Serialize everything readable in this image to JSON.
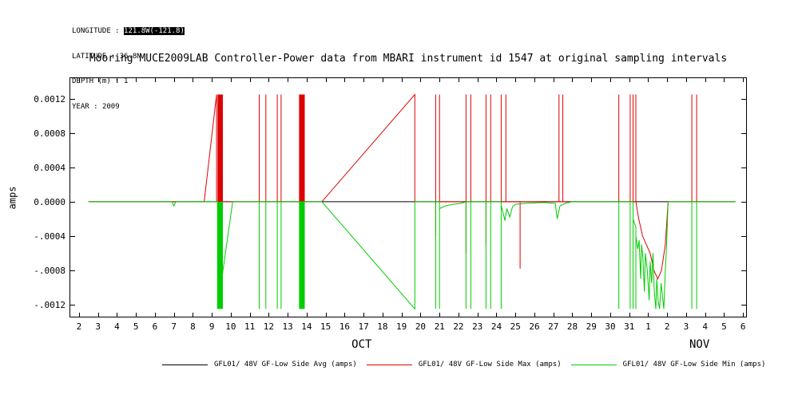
{
  "metadata": {
    "lines": [
      {
        "label": "LONGITUDE : ",
        "value": "121.8W(-121.8)",
        "highlighted": true
      },
      {
        "label": "LATITUDE : ",
        "value": "36.8N",
        "highlighted": false
      },
      {
        "label": "DEPTH (m) : ",
        "value": "1",
        "highlighted": false
      },
      {
        "label": "YEAR : ",
        "value": "2009",
        "highlighted": false
      }
    ]
  },
  "title": "Mooring MUCE2009LAB Controller-Power data from MBARI instrument id 1547 at original sampling intervals",
  "chart_data": {
    "type": "line",
    "title": "Mooring MUCE2009LAB Controller-Power data from MBARI instrument id 1547 at original sampling intervals",
    "xlabel": "",
    "ylabel": "amps",
    "xlim": [
      1.5,
      37.2
    ],
    "ylim": [
      -0.00135,
      0.00145
    ],
    "grid": false,
    "legend_position": "bottom",
    "x_units": "day of month (OCT 2 - NOV 6, 2009)",
    "yticks": [
      {
        "value": 0.0012,
        "label": "0.0012"
      },
      {
        "value": 0.0008,
        "label": "0.0008"
      },
      {
        "value": 0.0004,
        "label": "0.0004"
      },
      {
        "value": 0.0,
        "label": "0.0000"
      },
      {
        "value": -0.0004,
        "label": "-.0004"
      },
      {
        "value": -0.0008,
        "label": "-.0008"
      },
      {
        "value": -0.0012,
        "label": "-.0012"
      }
    ],
    "xticks": {
      "start_day": 2,
      "labels": [
        "2",
        "3",
        "4",
        "5",
        "6",
        "7",
        "8",
        "9",
        "10",
        "11",
        "12",
        "13",
        "14",
        "15",
        "16",
        "17",
        "18",
        "19",
        "20",
        "21",
        "22",
        "23",
        "24",
        "25",
        "26",
        "27",
        "28",
        "29",
        "30",
        "31",
        "1",
        "2",
        "3",
        "4",
        "5",
        "6"
      ]
    },
    "month_labels": [
      {
        "day": 16.9,
        "label": "OCT"
      },
      {
        "day": 34.7,
        "label": "NOV"
      }
    ],
    "series": [
      {
        "name": "GFL01/ 48V GF-Low Side Avg (amps)",
        "color": "#000000",
        "bands": [],
        "segments": [
          [
            [
              2.5,
              0
            ],
            [
              36.6,
              0
            ]
          ]
        ]
      },
      {
        "name": "GFL01/ 48V GF-Low Side Max (amps)",
        "color": "#dd0000",
        "bands": [
          {
            "x1": 9.3,
            "x2": 9.58,
            "y1": 0,
            "y2": 0.00125
          },
          {
            "x1": 13.6,
            "x2": 13.9,
            "y1": 0,
            "y2": 0.00125
          }
        ],
        "segments": [
          [
            [
              2.5,
              0
            ],
            [
              8.6,
              0
            ],
            [
              9.25,
              0.00125
            ],
            [
              9.25,
              0
            ],
            [
              11.5,
              0
            ],
            [
              11.5,
              0.00125
            ],
            [
              11.5,
              0
            ],
            [
              11.85,
              0
            ],
            [
              11.85,
              0.00125
            ],
            [
              11.85,
              0
            ],
            [
              12.45,
              0
            ],
            [
              12.45,
              0.00125
            ],
            [
              12.45,
              0
            ],
            [
              12.65,
              0
            ],
            [
              12.65,
              0.00125
            ],
            [
              12.65,
              0
            ],
            [
              14.8,
              0
            ],
            [
              19.7,
              0.00125
            ],
            [
              19.7,
              0
            ],
            [
              20.8,
              0
            ],
            [
              20.8,
              0.00125
            ],
            [
              20.8,
              -0.0004
            ],
            [
              20.8,
              0
            ],
            [
              21.0,
              0
            ],
            [
              21.0,
              0.00125
            ],
            [
              21.0,
              0
            ],
            [
              22.4,
              0
            ],
            [
              22.4,
              0.00125
            ],
            [
              22.4,
              -0.0006
            ],
            [
              22.4,
              0
            ],
            [
              22.65,
              0
            ],
            [
              22.65,
              0.00125
            ],
            [
              22.65,
              0
            ],
            [
              23.45,
              0
            ],
            [
              23.45,
              0.00125
            ],
            [
              23.45,
              -0.0005
            ],
            [
              23.45,
              0
            ],
            [
              23.7,
              0
            ],
            [
              23.7,
              0.00125
            ],
            [
              23.7,
              0
            ],
            [
              24.25,
              0
            ],
            [
              24.25,
              0.00125
            ],
            [
              24.25,
              0
            ],
            [
              24.5,
              0
            ],
            [
              24.5,
              0.00125
            ],
            [
              24.5,
              0
            ],
            [
              25.25,
              0
            ],
            [
              25.25,
              -0.00078
            ],
            [
              25.25,
              0
            ],
            [
              27.3,
              0
            ],
            [
              27.3,
              0.00125
            ],
            [
              27.3,
              0
            ],
            [
              27.5,
              0
            ],
            [
              27.5,
              0.00125
            ],
            [
              27.5,
              0
            ],
            [
              30.45,
              0
            ],
            [
              30.45,
              0.00125
            ],
            [
              30.45,
              0
            ],
            [
              31.05,
              0
            ],
            [
              31.05,
              0.00125
            ],
            [
              31.05,
              0
            ],
            [
              31.2,
              0
            ],
            [
              31.2,
              0.00125
            ],
            [
              31.2,
              -0.0005
            ],
            [
              31.2,
              0
            ],
            [
              31.35,
              0
            ],
            [
              31.35,
              0.00125
            ],
            [
              31.35,
              0
            ],
            [
              31.5,
              -0.0002
            ],
            [
              31.7,
              -0.0004
            ],
            [
              31.9,
              -0.0005
            ],
            [
              32.1,
              -0.0006
            ],
            [
              32.3,
              -0.0008
            ],
            [
              32.5,
              -0.0009
            ],
            [
              32.7,
              -0.0008
            ],
            [
              32.9,
              -0.0005
            ],
            [
              33.05,
              0
            ],
            [
              34.3,
              0
            ],
            [
              34.3,
              0.00125
            ],
            [
              34.3,
              0
            ],
            [
              34.55,
              0
            ],
            [
              34.55,
              0.00125
            ],
            [
              34.55,
              0
            ],
            [
              36.6,
              0
            ]
          ]
        ]
      },
      {
        "name": "GFL01/ 48V GF-Low Side Min (amps)",
        "color": "#00cc00",
        "bands": [
          {
            "x1": 9.3,
            "x2": 9.58,
            "y1": -0.00125,
            "y2": 0
          },
          {
            "x1": 13.6,
            "x2": 13.9,
            "y1": -0.00125,
            "y2": 0
          }
        ],
        "segments": [
          [
            [
              2.5,
              0
            ],
            [
              6.9,
              0
            ],
            [
              7.0,
              -5e-05
            ],
            [
              7.1,
              0
            ],
            [
              9.3,
              0
            ],
            [
              9.3,
              -0.00125
            ],
            [
              10.1,
              0
            ],
            [
              11.5,
              0
            ],
            [
              11.5,
              -0.00125
            ],
            [
              11.5,
              0
            ],
            [
              11.85,
              0
            ],
            [
              11.85,
              -0.00125
            ],
            [
              11.85,
              0
            ],
            [
              12.45,
              0
            ],
            [
              12.45,
              -0.00125
            ],
            [
              12.45,
              0
            ],
            [
              12.65,
              0
            ],
            [
              12.65,
              -0.00125
            ],
            [
              12.65,
              0
            ],
            [
              14.8,
              0
            ],
            [
              19.7,
              -0.00125
            ],
            [
              19.7,
              0
            ],
            [
              20.8,
              0
            ],
            [
              20.8,
              -0.00125
            ],
            [
              20.8,
              0
            ],
            [
              21.0,
              0
            ],
            [
              21.0,
              -0.00125
            ],
            [
              21.0,
              -8e-05
            ],
            [
              21.3,
              -5e-05
            ],
            [
              21.7,
              -3e-05
            ],
            [
              22.1,
              -2e-05
            ],
            [
              22.3,
              -1e-05
            ],
            [
              22.4,
              0
            ],
            [
              22.4,
              -0.00125
            ],
            [
              22.4,
              0
            ],
            [
              22.65,
              0
            ],
            [
              22.65,
              -0.00125
            ],
            [
              22.65,
              0
            ],
            [
              23.45,
              0
            ],
            [
              23.45,
              -0.00125
            ],
            [
              23.45,
              0
            ],
            [
              23.7,
              0
            ],
            [
              23.7,
              -0.00125
            ],
            [
              23.7,
              0
            ],
            [
              24.25,
              0
            ],
            [
              24.25,
              -0.00125
            ],
            [
              24.25,
              -4e-05
            ],
            [
              24.45,
              -0.00022
            ],
            [
              24.55,
              -8e-05
            ],
            [
              24.7,
              -0.00018
            ],
            [
              24.85,
              -6e-05
            ],
            [
              25.0,
              -3e-05
            ],
            [
              25.5,
              -2e-05
            ],
            [
              26.5,
              -1e-05
            ],
            [
              27.1,
              -2e-05
            ],
            [
              27.2,
              -0.0002
            ],
            [
              27.35,
              -5e-05
            ],
            [
              27.6,
              -2e-05
            ],
            [
              28.0,
              0
            ],
            [
              30.45,
              0
            ],
            [
              30.45,
              -0.00125
            ],
            [
              30.45,
              0
            ],
            [
              31.05,
              0
            ],
            [
              31.05,
              -0.00125
            ],
            [
              31.05,
              0
            ],
            [
              31.2,
              0
            ],
            [
              31.2,
              -0.00125
            ],
            [
              31.2,
              -0.0002
            ],
            [
              31.35,
              -0.0003
            ],
            [
              31.35,
              -0.00125
            ],
            [
              31.35,
              -0.0004
            ],
            [
              31.45,
              -0.00055
            ],
            [
              31.52,
              -0.00045
            ],
            [
              31.6,
              -0.0009
            ],
            [
              31.65,
              -0.0005
            ],
            [
              31.72,
              -0.00065
            ],
            [
              31.8,
              -0.00105
            ],
            [
              31.85,
              -0.0006
            ],
            [
              31.95,
              -0.0008
            ],
            [
              32.05,
              -0.00115
            ],
            [
              32.1,
              -0.0007
            ],
            [
              32.18,
              -0.00095
            ],
            [
              32.25,
              -0.0006
            ],
            [
              32.32,
              -0.00105
            ],
            [
              32.4,
              -0.00125
            ],
            [
              32.45,
              -0.0009
            ],
            [
              32.52,
              -0.00115
            ],
            [
              32.6,
              -0.00125
            ],
            [
              32.68,
              -0.00095
            ],
            [
              32.75,
              -0.0011
            ],
            [
              32.82,
              -0.00125
            ],
            [
              32.9,
              -0.0008
            ],
            [
              32.97,
              -0.0005
            ],
            [
              33.05,
              0
            ],
            [
              34.3,
              0
            ],
            [
              34.3,
              -0.00125
            ],
            [
              34.3,
              0
            ],
            [
              34.55,
              0
            ],
            [
              34.55,
              -0.00125
            ],
            [
              34.55,
              0
            ],
            [
              36.6,
              0
            ]
          ]
        ]
      }
    ]
  },
  "legend": {
    "items": [
      {
        "label": "GFL01/ 48V GF-Low Side Avg (amps)"
      },
      {
        "label": "GFL01/ 48V GF-Low Side Max (amps)"
      },
      {
        "label": "GFL01/ 48V GF-Low Side Min (amps)"
      }
    ]
  }
}
